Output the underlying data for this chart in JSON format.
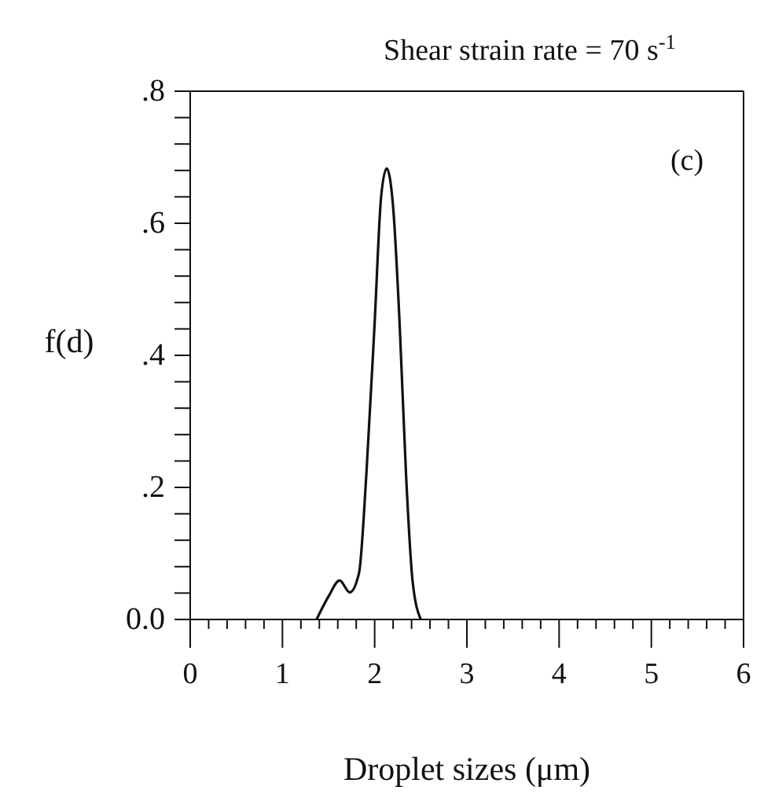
{
  "chart_data": {
    "type": "line",
    "title": "Shear strain rate = 70 s$^{-1}$",
    "xlabel": "Droplet sizes (μm)",
    "ylabel": "f(d)",
    "annotations": [
      "(c)"
    ],
    "series": [
      {
        "color": "#111111",
        "x": [
          1.37,
          1.5,
          1.62,
          1.73,
          1.83,
          1.91,
          2.0,
          2.07,
          2.13,
          2.2,
          2.27,
          2.34,
          2.41,
          2.5
        ],
        "values": [
          0,
          0.035,
          0.059,
          0.041,
          0.07,
          0.22,
          0.45,
          0.64,
          0.683,
          0.625,
          0.45,
          0.22,
          0.06,
          0
        ]
      }
    ],
    "xlim": [
      0,
      6
    ],
    "xticks": [
      0,
      {
        "value": 0.2,
        "label": null
      },
      {
        "value": 0.4,
        "label": null
      },
      {
        "value": 0.6,
        "label": null
      },
      {
        "value": 0.8,
        "label": null
      },
      1,
      {
        "value": 1.2,
        "label": null
      },
      {
        "value": 1.4,
        "label": null
      },
      {
        "value": 1.6,
        "label": null
      },
      {
        "value": 1.8,
        "label": null
      },
      2,
      {
        "value": 2.2,
        "label": null
      },
      {
        "value": 2.4,
        "label": null
      },
      {
        "value": 2.6,
        "label": null
      },
      {
        "value": 2.8,
        "label": null
      },
      3,
      {
        "value": 3.2,
        "label": null
      },
      {
        "value": 3.4,
        "label": null
      },
      {
        "value": 3.6,
        "label": null
      },
      {
        "value": 3.8,
        "label": null
      },
      4,
      {
        "value": 4.2,
        "label": null
      },
      {
        "value": 4.4,
        "label": null
      },
      {
        "value": 4.6,
        "label": null
      },
      {
        "value": 4.8,
        "label": null
      },
      5,
      {
        "value": 5.2,
        "label": null
      },
      {
        "value": 5.4,
        "label": null
      },
      {
        "value": 5.6,
        "label": null
      },
      {
        "value": 5.8,
        "label": null
      },
      6
    ],
    "ylim": [
      0,
      0.8
    ],
    "yticks": [
      {
        "value": 0,
        "label": "0.0"
      },
      {
        "value": 0.04,
        "label": null
      },
      {
        "value": 0.08,
        "label": null
      },
      {
        "value": 0.12,
        "label": null
      },
      {
        "value": 0.16,
        "label": null
      },
      {
        "value": 0.2,
        "label": ".2"
      },
      {
        "value": 0.24,
        "label": null
      },
      {
        "value": 0.28,
        "label": null
      },
      {
        "value": 0.32,
        "label": null
      },
      {
        "value": 0.36,
        "label": null
      },
      {
        "value": 0.4,
        "label": ".4"
      },
      {
        "value": 0.44,
        "label": null
      },
      {
        "value": 0.48,
        "label": null
      },
      {
        "value": 0.52,
        "label": null
      },
      {
        "value": 0.56,
        "label": null
      },
      {
        "value": 0.6,
        "label": ".6"
      },
      {
        "value": 0.64,
        "label": null
      },
      {
        "value": 0.68,
        "label": null
      },
      {
        "value": 0.72,
        "label": null
      },
      {
        "value": 0.76,
        "label": null
      },
      {
        "value": 0.8,
        "label": ".8"
      }
    ],
    "grid": false,
    "marker": "none",
    "line_style": "solid"
  }
}
